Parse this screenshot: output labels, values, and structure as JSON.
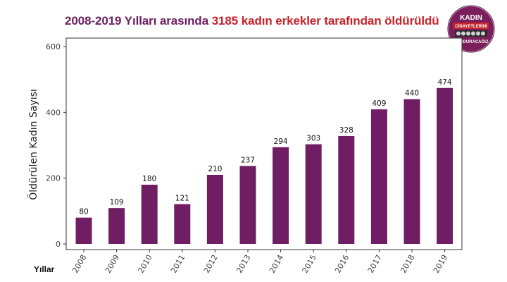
{
  "title": {
    "part1": "2008-2019 Yılları arasında ",
    "part2": "3185 kadın erkekler tarafından öldürüldü"
  },
  "logo": {
    "line1": "KADIN",
    "line2": "CİNAYETLERİNİ",
    "line3": "DURDURACAĞIZ"
  },
  "colors": {
    "bar": "#6f1e63",
    "title_purple": "#6b2060",
    "title_red": "#c8222a",
    "logo_bg": "#7a1f5c"
  },
  "chart_data": {
    "type": "bar",
    "title": "2008-2019 Yılları arasında 3185 kadın erkekler tarafından öldürüldü",
    "xlabel": "Yıllar",
    "ylabel": "Öldürülen Kadın Sayısı",
    "categories": [
      "2008",
      "2009",
      "2010",
      "2011",
      "2012",
      "2013",
      "2014",
      "2015",
      "2016",
      "2017",
      "2018",
      "2019"
    ],
    "values": [
      80,
      109,
      180,
      121,
      210,
      237,
      294,
      303,
      328,
      409,
      440,
      474
    ],
    "ylim": [
      0,
      600
    ],
    "yticks": [
      0,
      200,
      400,
      600
    ],
    "grid": false,
    "data_labels": true
  }
}
